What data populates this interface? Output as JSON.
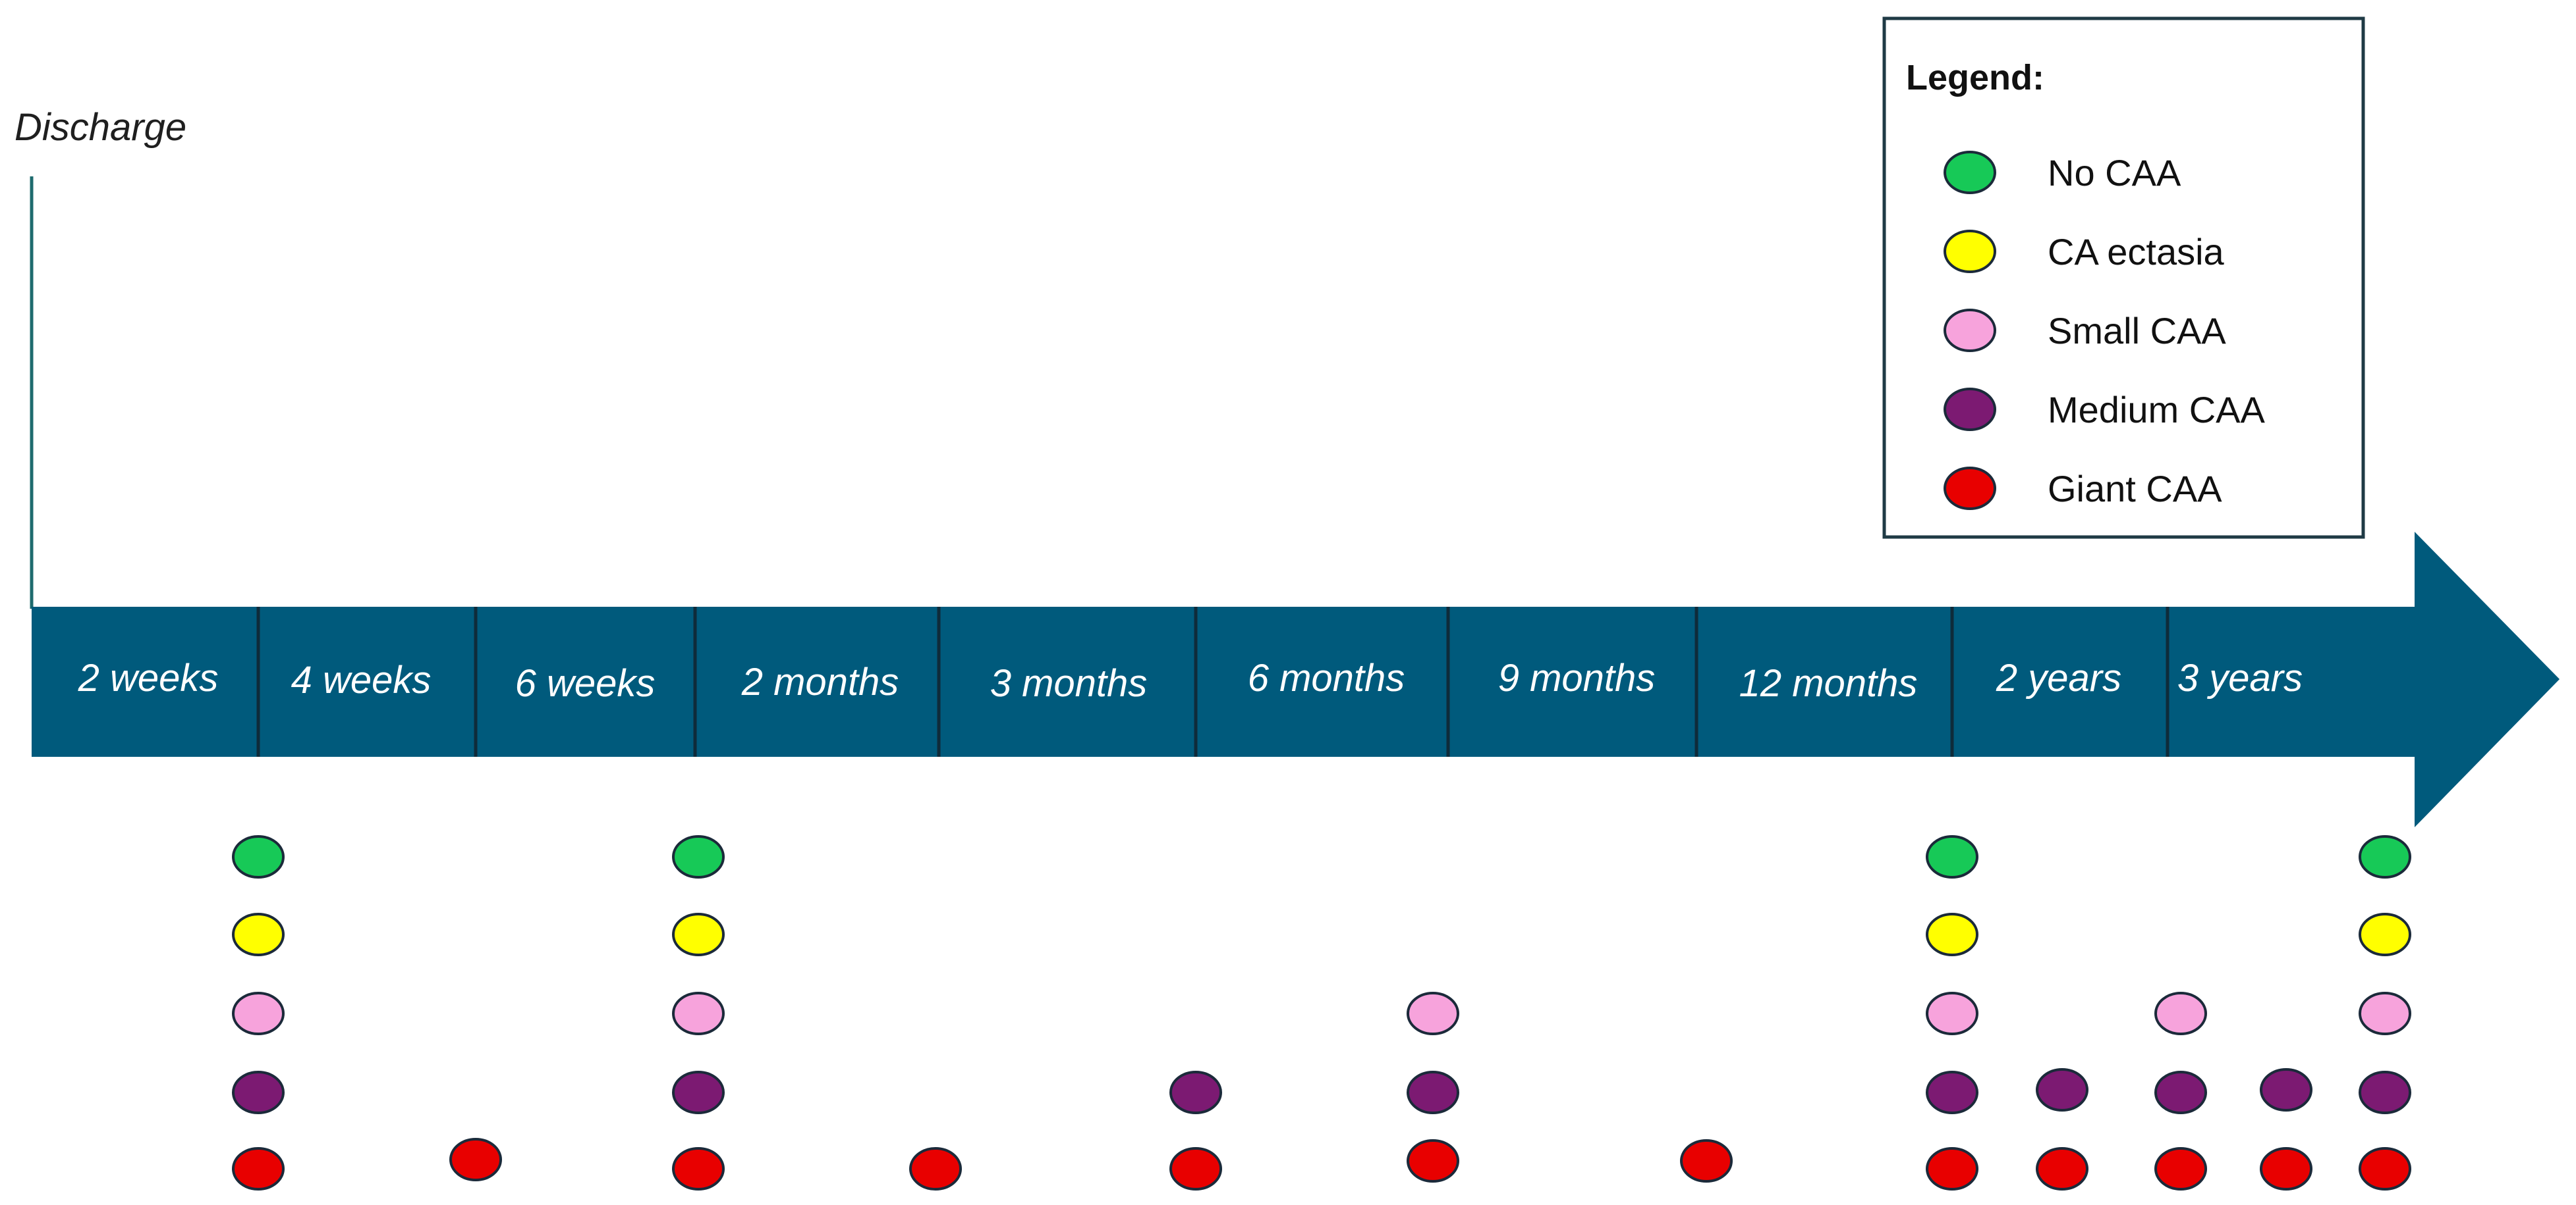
{
  "timeline": {
    "start_label": "Discharge",
    "intervals": [
      "2 weeks",
      "4 weeks",
      "6 weeks",
      "2 months",
      "3 months",
      "6 months",
      "9 months",
      "12 months",
      "2 years",
      "3 years"
    ],
    "colors": {
      "arrow": "#005a7c",
      "divider": "#0f2b3a",
      "start_line": "#1e6b6e"
    }
  },
  "legend": {
    "title": "Legend:",
    "items": [
      {
        "key": "no_caa",
        "label": "No CAA",
        "color": "#17c957"
      },
      {
        "key": "ca_ectasia",
        "label": "CA ectasia",
        "color": "#ffff00"
      },
      {
        "key": "small_caa",
        "label": "Small CAA",
        "color": "#f7a3dc"
      },
      {
        "key": "medium_caa",
        "label": "Medium CAA",
        "color": "#7c1a72"
      },
      {
        "key": "giant_caa",
        "label": "Giant CAA",
        "color": "#e80000"
      }
    ]
  },
  "follow_up_markers": [
    {
      "point": "2 weeks",
      "categories": [
        "no_caa",
        "ca_ectasia",
        "small_caa",
        "medium_caa",
        "giant_caa"
      ]
    },
    {
      "point": "4 weeks",
      "categories": [
        "giant_caa"
      ]
    },
    {
      "point": "6 weeks",
      "categories": [
        "no_caa",
        "ca_ectasia",
        "small_caa",
        "medium_caa",
        "giant_caa"
      ]
    },
    {
      "point": "2 months",
      "categories": [
        "giant_caa"
      ]
    },
    {
      "point": "3 months",
      "categories": [
        "medium_caa",
        "giant_caa"
      ]
    },
    {
      "point": "6 months",
      "categories": [
        "small_caa",
        "medium_caa",
        "giant_caa"
      ]
    },
    {
      "point": "9 months",
      "categories": [
        "giant_caa"
      ]
    },
    {
      "point": "12 months",
      "categories": [
        "no_caa",
        "ca_ectasia",
        "small_caa",
        "medium_caa",
        "giant_caa"
      ]
    },
    {
      "point": "12 months – 2 years",
      "categories": [
        "medium_caa",
        "giant_caa"
      ]
    },
    {
      "point": "2 years",
      "categories": [
        "small_caa",
        "medium_caa",
        "giant_caa"
      ]
    },
    {
      "point": "2 years – 3 years",
      "categories": [
        "medium_caa",
        "giant_caa"
      ]
    },
    {
      "point": "3 years",
      "categories": [
        "no_caa",
        "ca_ectasia",
        "small_caa",
        "medium_caa",
        "giant_caa"
      ]
    }
  ]
}
